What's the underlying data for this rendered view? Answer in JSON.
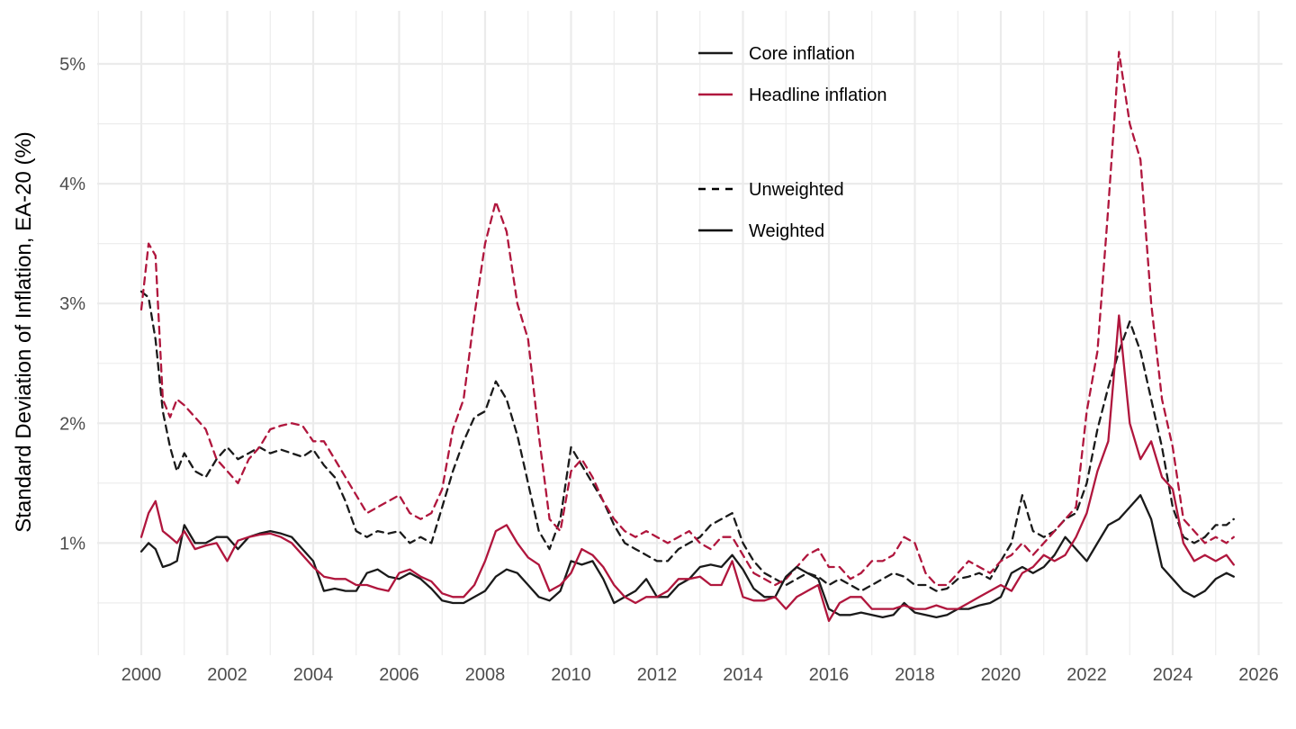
{
  "chart_data": {
    "type": "line",
    "title": "",
    "xlabel": "",
    "ylabel": "Standard Deviation of Inflation, EA-20 (%)",
    "xlim": [
      1999,
      2026.6
    ],
    "ylim": [
      0.0,
      5.5
    ],
    "x_ticks": [
      2000,
      2002,
      2004,
      2006,
      2008,
      2010,
      2012,
      2014,
      2016,
      2018,
      2020,
      2022,
      2024,
      2026
    ],
    "x_tick_labels": [
      "2000",
      "2002",
      "2004",
      "2006",
      "2008",
      "2010",
      "2012",
      "2014",
      "2016",
      "2018",
      "2020",
      "2022",
      "2024",
      "2026"
    ],
    "y_ticks": [
      1,
      2,
      3,
      4,
      5
    ],
    "y_tick_labels": [
      "1%",
      "2%",
      "3%",
      "4%",
      "5%"
    ],
    "grid": true,
    "colors": {
      "core": "#1a1a1a",
      "headline": "#b0163d",
      "grid": "#ebebeb"
    },
    "legend": {
      "color_title": "",
      "color_entries": [
        "Core inflation",
        "Headline inflation"
      ],
      "linetype_title": "",
      "linetype_entries": [
        "Unweighted",
        "Weighted"
      ],
      "placement": "top-center"
    },
    "series": [
      {
        "name": "Core inflation — Unweighted",
        "measure": "Core inflation",
        "weighting": "Unweighted",
        "x": [
          2000.0,
          2000.17,
          2000.33,
          2000.5,
          2000.67,
          2000.83,
          2001.0,
          2001.25,
          2001.5,
          2001.75,
          2002.0,
          2002.25,
          2002.5,
          2002.75,
          2003.0,
          2003.25,
          2003.5,
          2003.75,
          2004.0,
          2004.25,
          2004.5,
          2004.75,
          2005.0,
          2005.25,
          2005.5,
          2005.75,
          2006.0,
          2006.25,
          2006.5,
          2006.75,
          2007.0,
          2007.25,
          2007.5,
          2007.75,
          2008.0,
          2008.25,
          2008.5,
          2008.75,
          2009.0,
          2009.25,
          2009.5,
          2009.75,
          2010.0,
          2010.25,
          2010.5,
          2010.75,
          2011.0,
          2011.25,
          2011.5,
          2011.75,
          2012.0,
          2012.25,
          2012.5,
          2012.75,
          2013.0,
          2013.25,
          2013.5,
          2013.75,
          2014.0,
          2014.25,
          2014.5,
          2014.75,
          2015.0,
          2015.25,
          2015.5,
          2015.75,
          2016.0,
          2016.25,
          2016.5,
          2016.75,
          2017.0,
          2017.25,
          2017.5,
          2017.75,
          2018.0,
          2018.25,
          2018.5,
          2018.75,
          2019.0,
          2019.25,
          2019.5,
          2019.75,
          2020.0,
          2020.25,
          2020.5,
          2020.75,
          2021.0,
          2021.25,
          2021.5,
          2021.75,
          2022.0,
          2022.25,
          2022.5,
          2022.75,
          2023.0,
          2023.25,
          2023.5,
          2023.75,
          2024.0,
          2024.25,
          2024.5,
          2024.75,
          2025.0,
          2025.25,
          2025.42
        ],
        "y": [
          3.1,
          3.05,
          2.7,
          2.1,
          1.8,
          1.6,
          1.75,
          1.6,
          1.55,
          1.7,
          1.8,
          1.7,
          1.75,
          1.8,
          1.75,
          1.78,
          1.75,
          1.72,
          1.78,
          1.65,
          1.55,
          1.35,
          1.1,
          1.05,
          1.1,
          1.08,
          1.1,
          1.0,
          1.05,
          1.0,
          1.3,
          1.6,
          1.85,
          2.05,
          2.1,
          2.35,
          2.2,
          1.9,
          1.5,
          1.1,
          0.95,
          1.2,
          1.8,
          1.65,
          1.5,
          1.35,
          1.15,
          1.0,
          0.95,
          0.9,
          0.85,
          0.85,
          0.95,
          1.0,
          1.05,
          1.15,
          1.2,
          1.25,
          1.0,
          0.85,
          0.75,
          0.7,
          0.65,
          0.7,
          0.75,
          0.72,
          0.65,
          0.7,
          0.65,
          0.6,
          0.65,
          0.7,
          0.75,
          0.72,
          0.65,
          0.65,
          0.6,
          0.62,
          0.7,
          0.72,
          0.75,
          0.7,
          0.85,
          1.0,
          1.4,
          1.1,
          1.05,
          1.1,
          1.2,
          1.25,
          1.5,
          1.95,
          2.3,
          2.6,
          2.85,
          2.6,
          2.2,
          1.8,
          1.3,
          1.05,
          1.0,
          1.05,
          1.15,
          1.15,
          1.2
        ]
      },
      {
        "name": "Headline inflation — Unweighted",
        "measure": "Headline inflation",
        "weighting": "Unweighted",
        "x": [
          2000.0,
          2000.17,
          2000.33,
          2000.5,
          2000.67,
          2000.83,
          2001.0,
          2001.25,
          2001.5,
          2001.75,
          2002.0,
          2002.25,
          2002.5,
          2002.75,
          2003.0,
          2003.25,
          2003.5,
          2003.75,
          2004.0,
          2004.25,
          2004.5,
          2004.75,
          2005.0,
          2005.25,
          2005.5,
          2005.75,
          2006.0,
          2006.25,
          2006.5,
          2006.75,
          2007.0,
          2007.25,
          2007.5,
          2007.75,
          2008.0,
          2008.25,
          2008.5,
          2008.75,
          2009.0,
          2009.25,
          2009.5,
          2009.75,
          2010.0,
          2010.25,
          2010.5,
          2010.75,
          2011.0,
          2011.25,
          2011.5,
          2011.75,
          2012.0,
          2012.25,
          2012.5,
          2012.75,
          2013.0,
          2013.25,
          2013.5,
          2013.75,
          2014.0,
          2014.25,
          2014.5,
          2014.75,
          2015.0,
          2015.25,
          2015.5,
          2015.75,
          2016.0,
          2016.25,
          2016.5,
          2016.75,
          2017.0,
          2017.25,
          2017.5,
          2017.75,
          2018.0,
          2018.25,
          2018.5,
          2018.75,
          2019.0,
          2019.25,
          2019.5,
          2019.75,
          2020.0,
          2020.25,
          2020.5,
          2020.75,
          2021.0,
          2021.25,
          2021.5,
          2021.75,
          2022.0,
          2022.25,
          2022.5,
          2022.75,
          2023.0,
          2023.25,
          2023.5,
          2023.75,
          2024.0,
          2024.25,
          2024.5,
          2024.75,
          2025.0,
          2025.25,
          2025.42
        ],
        "y": [
          2.95,
          3.5,
          3.4,
          2.2,
          2.05,
          2.2,
          2.15,
          2.05,
          1.95,
          1.7,
          1.6,
          1.5,
          1.7,
          1.8,
          1.95,
          1.98,
          2.0,
          1.98,
          1.85,
          1.85,
          1.7,
          1.55,
          1.4,
          1.25,
          1.3,
          1.35,
          1.4,
          1.25,
          1.2,
          1.25,
          1.45,
          1.95,
          2.2,
          2.9,
          3.5,
          3.85,
          3.6,
          3.0,
          2.7,
          1.9,
          1.2,
          1.1,
          1.6,
          1.7,
          1.55,
          1.35,
          1.2,
          1.1,
          1.05,
          1.1,
          1.05,
          1.0,
          1.05,
          1.1,
          1.0,
          0.95,
          1.05,
          1.05,
          0.9,
          0.75,
          0.7,
          0.65,
          0.7,
          0.8,
          0.9,
          0.95,
          0.8,
          0.8,
          0.7,
          0.75,
          0.85,
          0.85,
          0.9,
          1.05,
          1.0,
          0.75,
          0.65,
          0.65,
          0.75,
          0.85,
          0.8,
          0.75,
          0.85,
          0.9,
          1.0,
          0.9,
          1.0,
          1.1,
          1.2,
          1.3,
          2.1,
          2.6,
          3.8,
          5.1,
          4.5,
          4.2,
          3.0,
          2.2,
          1.8,
          1.2,
          1.1,
          1.0,
          1.05,
          1.0,
          1.05
        ]
      },
      {
        "name": "Core inflation — Weighted",
        "measure": "Core inflation",
        "weighting": "Weighted",
        "x": [
          2000.0,
          2000.17,
          2000.33,
          2000.5,
          2000.67,
          2000.83,
          2001.0,
          2001.25,
          2001.5,
          2001.75,
          2002.0,
          2002.25,
          2002.5,
          2002.75,
          2003.0,
          2003.25,
          2003.5,
          2003.75,
          2004.0,
          2004.25,
          2004.5,
          2004.75,
          2005.0,
          2005.25,
          2005.5,
          2005.75,
          2006.0,
          2006.25,
          2006.5,
          2006.75,
          2007.0,
          2007.25,
          2007.5,
          2007.75,
          2008.0,
          2008.25,
          2008.5,
          2008.75,
          2009.0,
          2009.25,
          2009.5,
          2009.75,
          2010.0,
          2010.25,
          2010.5,
          2010.75,
          2011.0,
          2011.25,
          2011.5,
          2011.75,
          2012.0,
          2012.25,
          2012.5,
          2012.75,
          2013.0,
          2013.25,
          2013.5,
          2013.75,
          2014.0,
          2014.25,
          2014.5,
          2014.75,
          2015.0,
          2015.25,
          2015.5,
          2015.75,
          2016.0,
          2016.25,
          2016.5,
          2016.75,
          2017.0,
          2017.25,
          2017.5,
          2017.75,
          2018.0,
          2018.25,
          2018.5,
          2018.75,
          2019.0,
          2019.25,
          2019.5,
          2019.75,
          2020.0,
          2020.25,
          2020.5,
          2020.75,
          2021.0,
          2021.25,
          2021.5,
          2021.75,
          2022.0,
          2022.25,
          2022.5,
          2022.75,
          2023.0,
          2023.25,
          2023.5,
          2023.75,
          2024.0,
          2024.25,
          2024.5,
          2024.75,
          2025.0,
          2025.25,
          2025.42
        ],
        "y": [
          0.93,
          1.0,
          0.95,
          0.8,
          0.82,
          0.85,
          1.15,
          1.0,
          1.0,
          1.05,
          1.05,
          0.95,
          1.05,
          1.08,
          1.1,
          1.08,
          1.05,
          0.95,
          0.85,
          0.6,
          0.62,
          0.6,
          0.6,
          0.75,
          0.78,
          0.72,
          0.7,
          0.75,
          0.7,
          0.62,
          0.52,
          0.5,
          0.5,
          0.55,
          0.6,
          0.72,
          0.78,
          0.75,
          0.65,
          0.55,
          0.52,
          0.6,
          0.85,
          0.82,
          0.85,
          0.7,
          0.5,
          0.55,
          0.6,
          0.7,
          0.55,
          0.55,
          0.65,
          0.7,
          0.8,
          0.82,
          0.8,
          0.9,
          0.78,
          0.62,
          0.55,
          0.55,
          0.72,
          0.8,
          0.75,
          0.7,
          0.45,
          0.4,
          0.4,
          0.42,
          0.4,
          0.38,
          0.4,
          0.5,
          0.42,
          0.4,
          0.38,
          0.4,
          0.45,
          0.45,
          0.48,
          0.5,
          0.55,
          0.75,
          0.8,
          0.75,
          0.8,
          0.9,
          1.05,
          0.95,
          0.85,
          1.0,
          1.15,
          1.2,
          1.3,
          1.4,
          1.2,
          0.8,
          0.7,
          0.6,
          0.55,
          0.6,
          0.7,
          0.75,
          0.72
        ]
      },
      {
        "name": "Headline inflation — Weighted",
        "measure": "Headline inflation",
        "weighting": "Weighted",
        "x": [
          2000.0,
          2000.17,
          2000.33,
          2000.5,
          2000.67,
          2000.83,
          2001.0,
          2001.25,
          2001.5,
          2001.75,
          2002.0,
          2002.25,
          2002.5,
          2002.75,
          2003.0,
          2003.25,
          2003.5,
          2003.75,
          2004.0,
          2004.25,
          2004.5,
          2004.75,
          2005.0,
          2005.25,
          2005.5,
          2005.75,
          2006.0,
          2006.25,
          2006.5,
          2006.75,
          2007.0,
          2007.25,
          2007.5,
          2007.75,
          2008.0,
          2008.25,
          2008.5,
          2008.75,
          2009.0,
          2009.25,
          2009.5,
          2009.75,
          2010.0,
          2010.25,
          2010.5,
          2010.75,
          2011.0,
          2011.25,
          2011.5,
          2011.75,
          2012.0,
          2012.25,
          2012.5,
          2012.75,
          2013.0,
          2013.25,
          2013.5,
          2013.75,
          2014.0,
          2014.25,
          2014.5,
          2014.75,
          2015.0,
          2015.25,
          2015.5,
          2015.75,
          2016.0,
          2016.25,
          2016.5,
          2016.75,
          2017.0,
          2017.25,
          2017.5,
          2017.75,
          2018.0,
          2018.25,
          2018.5,
          2018.75,
          2019.0,
          2019.25,
          2019.5,
          2019.75,
          2020.0,
          2020.25,
          2020.5,
          2020.75,
          2021.0,
          2021.25,
          2021.5,
          2021.75,
          2022.0,
          2022.25,
          2022.5,
          2022.75,
          2023.0,
          2023.25,
          2023.5,
          2023.75,
          2024.0,
          2024.25,
          2024.5,
          2024.75,
          2025.0,
          2025.25,
          2025.42
        ],
        "y": [
          1.05,
          1.25,
          1.35,
          1.1,
          1.05,
          1.0,
          1.1,
          0.95,
          0.98,
          1.0,
          0.85,
          1.02,
          1.05,
          1.07,
          1.08,
          1.05,
          1.0,
          0.9,
          0.8,
          0.72,
          0.7,
          0.7,
          0.65,
          0.65,
          0.62,
          0.6,
          0.75,
          0.78,
          0.72,
          0.68,
          0.58,
          0.55,
          0.55,
          0.65,
          0.85,
          1.1,
          1.15,
          1.0,
          0.88,
          0.82,
          0.6,
          0.65,
          0.75,
          0.95,
          0.9,
          0.8,
          0.65,
          0.55,
          0.5,
          0.55,
          0.55,
          0.6,
          0.7,
          0.7,
          0.72,
          0.65,
          0.65,
          0.85,
          0.55,
          0.52,
          0.52,
          0.55,
          0.45,
          0.55,
          0.6,
          0.65,
          0.35,
          0.5,
          0.55,
          0.55,
          0.45,
          0.45,
          0.45,
          0.48,
          0.45,
          0.45,
          0.48,
          0.45,
          0.45,
          0.5,
          0.55,
          0.6,
          0.65,
          0.6,
          0.75,
          0.8,
          0.9,
          0.85,
          0.9,
          1.05,
          1.25,
          1.6,
          1.85,
          2.9,
          2.0,
          1.7,
          1.85,
          1.55,
          1.45,
          1.0,
          0.85,
          0.9,
          0.85,
          0.9,
          0.82
        ]
      }
    ]
  }
}
